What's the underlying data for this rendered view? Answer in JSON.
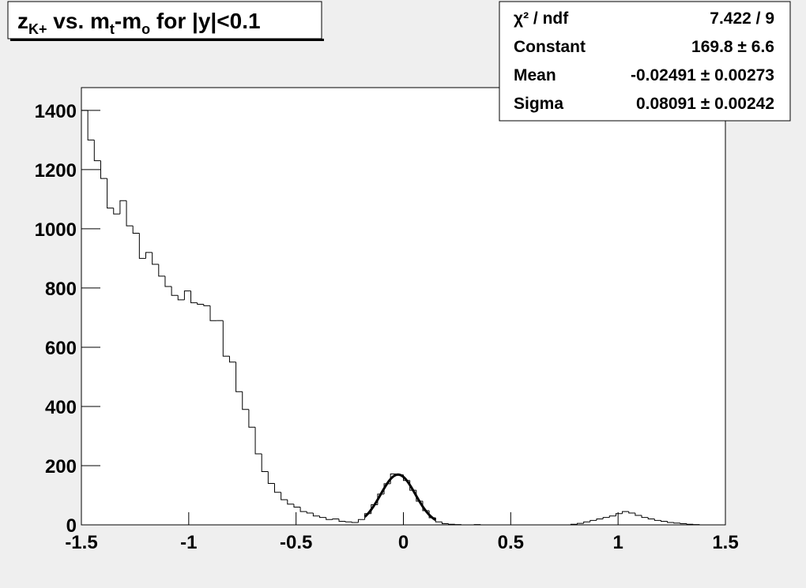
{
  "chart_data": {
    "type": "histogram",
    "title_parts": [
      {
        "text": "z"
      },
      {
        "text": "K+",
        "sub": true
      },
      {
        "text": " vs. m"
      },
      {
        "text": "t",
        "sub": true
      },
      {
        "text": "-m"
      },
      {
        "text": "o",
        "sub": true
      },
      {
        "text": " for |y|<0.1"
      }
    ],
    "bins": [
      -1.5,
      -1.47,
      -1.44,
      -1.41,
      -1.38,
      -1.35,
      -1.32,
      -1.29,
      -1.26,
      -1.23,
      -1.2,
      -1.17,
      -1.14,
      -1.11,
      -1.08,
      -1.05,
      -1.02,
      -0.99,
      -0.96,
      -0.93,
      -0.9,
      -0.87,
      -0.84,
      -0.81,
      -0.78,
      -0.75,
      -0.72,
      -0.69,
      -0.66,
      -0.63,
      -0.6,
      -0.57,
      -0.54,
      -0.51,
      -0.48,
      -0.45,
      -0.42,
      -0.39,
      -0.36,
      -0.33,
      -0.3,
      -0.27,
      -0.24,
      -0.21,
      -0.18,
      -0.15,
      -0.12,
      -0.09,
      -0.06,
      -0.03,
      0,
      0.03,
      0.06,
      0.09,
      0.12,
      0.15,
      0.18,
      0.21,
      0.24,
      0.27,
      0.3,
      0.33,
      0.36,
      0.39,
      0.42,
      0.45,
      0.48,
      0.51,
      0.54,
      0.57,
      0.6,
      0.63,
      0.66,
      0.69,
      0.72,
      0.75,
      0.78,
      0.81,
      0.84,
      0.87,
      0.9,
      0.93,
      0.96,
      0.99,
      1.02,
      1.05,
      1.08,
      1.11,
      1.14,
      1.17,
      1.2,
      1.23,
      1.26,
      1.29,
      1.32,
      1.35,
      1.38,
      1.41,
      1.44,
      1.47,
      1.5
    ],
    "values": [
      1400,
      1300,
      1230,
      1170,
      1070,
      1050,
      1095,
      1010,
      985,
      900,
      920,
      880,
      840,
      805,
      775,
      760,
      790,
      750,
      745,
      740,
      690,
      690,
      570,
      550,
      450,
      390,
      330,
      240,
      180,
      140,
      110,
      85,
      70,
      60,
      45,
      40,
      30,
      25,
      18,
      20,
      12,
      10,
      8,
      18,
      38,
      68,
      104,
      139,
      172,
      169,
      150,
      117,
      80,
      48,
      24,
      10,
      4,
      2,
      1,
      0,
      0,
      1,
      0,
      0,
      0,
      0,
      0,
      0,
      0,
      0,
      0,
      0,
      0,
      0,
      0,
      0,
      2,
      5,
      10,
      15,
      20,
      25,
      30,
      38,
      45,
      40,
      32,
      25,
      20,
      15,
      12,
      8,
      6,
      4,
      2,
      1,
      0,
      0,
      0,
      0
    ],
    "color": "#000000",
    "fit_range": [
      -0.18,
      0.15
    ],
    "stats": [
      {
        "name": "χ² / ndf",
        "label": "7.422 / 9"
      },
      {
        "name": "Constant",
        "value": 169.8,
        "label": "169.8 ± 6.6"
      },
      {
        "name": "Mean",
        "value": -0.02491,
        "label": "-0.02491 ± 0.00273"
      },
      {
        "name": "Sigma",
        "value": 0.08091,
        "label": "0.08091 ± 0.00242"
      }
    ],
    "xlim": [
      -1.5,
      1.5
    ],
    "xticks": [
      -1.5,
      -1,
      -0.5,
      0,
      0.5,
      1,
      1.5
    ],
    "ylim": [
      0,
      1477
    ],
    "yticks": [
      0,
      200,
      400,
      600,
      800,
      1000,
      1200,
      1400
    ]
  }
}
